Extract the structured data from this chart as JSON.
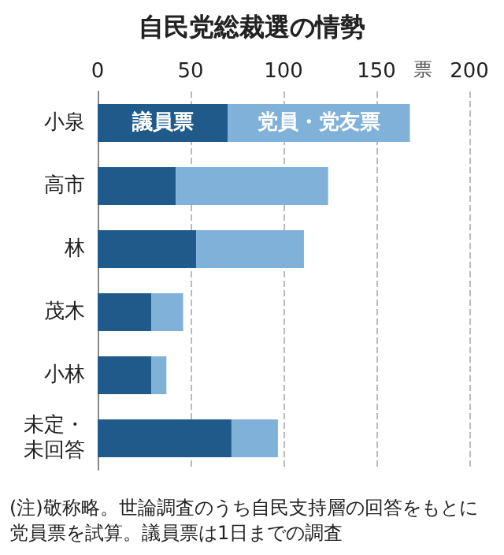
{
  "chart_data": {
    "type": "bar",
    "orientation": "horizontal",
    "stacked": true,
    "title": "自民党総裁選の情勢",
    "xlabel": "票",
    "categories": [
      "小泉",
      "高市",
      "林",
      "茂木",
      "小林",
      "未定・未回答"
    ],
    "series": [
      {
        "name": "議員票",
        "color": "#1f5a8a",
        "values": [
          70,
          42,
          53,
          29,
          29,
          72
        ]
      },
      {
        "name": "党員・党友票",
        "color": "#80b1d9",
        "values": [
          98,
          82,
          58,
          17,
          8,
          25
        ]
      }
    ],
    "xlim": [
      0,
      200
    ],
    "xticks": [
      0,
      50,
      100,
      150,
      200
    ],
    "grid": "x",
    "annotations": [
      "(注)敬称略。世論調査のうち自民支持層の回答をもとに党員票を試算。議員票は1日までの調査"
    ]
  }
}
